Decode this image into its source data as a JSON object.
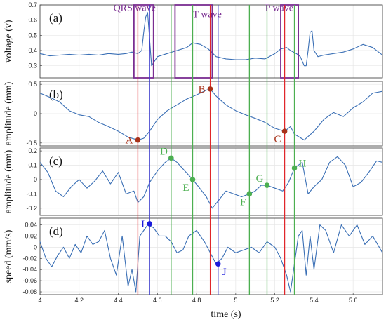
{
  "chart_data": {
    "type": "line",
    "xlabel": "time (s)",
    "xlim": [
      4.0,
      5.75
    ],
    "xticks": [
      4,
      4.2,
      4.4,
      4.6,
      4.8,
      5,
      5.2,
      5.4,
      5.6
    ],
    "xtick_labels": [
      "4",
      "4.2",
      "4.4",
      "4.6",
      "4.8",
      "5",
      "5.2",
      "5.4",
      "5.6"
    ],
    "colors": {
      "trace": "#3a6fb5",
      "red_line": "#e0262a",
      "green_line": "#4caf50",
      "blue_line": "#3a3acc",
      "purple_box": "#7a2d91",
      "brown_point": "#a8321a",
      "green_point": "#4caf50",
      "blue_point": "#1a1adc"
    },
    "vertical_lines": [
      {
        "x": 4.5,
        "color": "red"
      },
      {
        "x": 4.87,
        "color": "red"
      },
      {
        "x": 5.25,
        "color": "red"
      },
      {
        "x": 4.56,
        "color": "blue"
      },
      {
        "x": 4.91,
        "color": "blue"
      },
      {
        "x": 4.67,
        "color": "green"
      },
      {
        "x": 4.78,
        "color": "green"
      },
      {
        "x": 5.07,
        "color": "green"
      },
      {
        "x": 5.16,
        "color": "green"
      },
      {
        "x": 5.3,
        "color": "green"
      }
    ],
    "panels": [
      {
        "id": "a",
        "label": "(a)",
        "ylabel": "voltage (v)",
        "ylim": [
          0.22,
          0.7
        ],
        "yticks": [
          0.3,
          0.4,
          0.5,
          0.6,
          0.7
        ],
        "ytick_labels": [
          "0.3",
          "0.4",
          "0.5",
          "0.6",
          "0.7"
        ],
        "x": [
          4.0,
          4.05,
          4.1,
          4.15,
          4.2,
          4.25,
          4.3,
          4.35,
          4.4,
          4.44,
          4.47,
          4.5,
          4.52,
          4.53,
          4.54,
          4.55,
          4.57,
          4.6,
          4.65,
          4.7,
          4.75,
          4.78,
          4.82,
          4.86,
          4.9,
          4.95,
          5.0,
          5.05,
          5.1,
          5.15,
          5.2,
          5.23,
          5.26,
          5.28,
          5.31,
          5.33,
          5.35,
          5.36,
          5.37,
          5.38,
          5.39,
          5.4,
          5.42,
          5.45,
          5.5,
          5.55,
          5.6,
          5.65,
          5.7,
          5.75
        ],
        "y": [
          0.38,
          0.365,
          0.37,
          0.375,
          0.37,
          0.375,
          0.37,
          0.38,
          0.375,
          0.38,
          0.39,
          0.38,
          0.4,
          0.52,
          0.62,
          0.65,
          0.3,
          0.36,
          0.38,
          0.4,
          0.42,
          0.45,
          0.44,
          0.41,
          0.36,
          0.345,
          0.34,
          0.34,
          0.35,
          0.345,
          0.38,
          0.41,
          0.42,
          0.4,
          0.38,
          0.36,
          0.3,
          0.3,
          0.4,
          0.52,
          0.53,
          0.4,
          0.36,
          0.37,
          0.38,
          0.39,
          0.41,
          0.44,
          0.42,
          0.37
        ],
        "annotations": [
          {
            "text": "QRS wave",
            "x": 4.375,
            "y": 0.66
          },
          {
            "text": "T wave",
            "x": 4.78,
            "y": 0.62
          },
          {
            "text": "P wave",
            "x": 5.15,
            "y": 0.66
          }
        ],
        "boxes": [
          {
            "x0": 4.48,
            "x1": 4.58,
            "y0": 0.22,
            "y1": 0.7
          },
          {
            "x0": 4.69,
            "x1": 4.88,
            "y0": 0.22,
            "y1": 0.7
          },
          {
            "x0": 5.23,
            "x1": 5.32,
            "y0": 0.22,
            "y1": 0.7
          }
        ]
      },
      {
        "id": "b",
        "label": "(b)",
        "ylabel": "amplitude (mm)",
        "ylim": [
          -0.55,
          0.55
        ],
        "yticks": [
          -0.5,
          0,
          0.5
        ],
        "ytick_labels": [
          "-0.5",
          "0",
          "0.5"
        ],
        "x": [
          4.0,
          4.05,
          4.1,
          4.15,
          4.2,
          4.25,
          4.3,
          4.35,
          4.4,
          4.45,
          4.5,
          4.53,
          4.56,
          4.6,
          4.65,
          4.7,
          4.75,
          4.8,
          4.85,
          4.87,
          4.9,
          4.95,
          5.0,
          5.05,
          5.1,
          5.15,
          5.2,
          5.25,
          5.28,
          5.3,
          5.35,
          5.4,
          5.45,
          5.5,
          5.55,
          5.6,
          5.65,
          5.7,
          5.75
        ],
        "y": [
          0.35,
          0.28,
          0.2,
          0.05,
          -0.02,
          -0.05,
          -0.15,
          -0.22,
          -0.3,
          -0.4,
          -0.45,
          -0.42,
          -0.3,
          -0.1,
          0.05,
          0.15,
          0.25,
          0.32,
          0.4,
          0.42,
          0.3,
          0.15,
          0.05,
          -0.02,
          -0.08,
          -0.15,
          -0.25,
          -0.3,
          -0.22,
          -0.35,
          -0.45,
          -0.3,
          -0.1,
          0.02,
          -0.05,
          0.1,
          0.2,
          0.35,
          0.38
        ],
        "points": [
          {
            "label": "A",
            "x": 4.5,
            "y": -0.45,
            "color": "brown",
            "label_side": "left"
          },
          {
            "label": "B",
            "x": 4.87,
            "y": 0.42,
            "color": "brown",
            "label_side": "left"
          },
          {
            "label": "C",
            "x": 5.25,
            "y": -0.3,
            "color": "brown",
            "label_side": "below-left"
          }
        ]
      },
      {
        "id": "c",
        "label": "(c)",
        "ylabel": "amplitude (mm)",
        "ylim": [
          -0.25,
          0.22
        ],
        "yticks": [
          -0.2,
          -0.1,
          0,
          0.1,
          0.2
        ],
        "ytick_labels": [
          "-0.2",
          "-0.1",
          "0",
          "0.1",
          "0.2"
        ],
        "x": [
          4.0,
          4.04,
          4.08,
          4.12,
          4.16,
          4.2,
          4.24,
          4.28,
          4.32,
          4.36,
          4.4,
          4.44,
          4.48,
          4.5,
          4.53,
          4.56,
          4.6,
          4.64,
          4.67,
          4.7,
          4.74,
          4.78,
          4.81,
          4.85,
          4.88,
          4.91,
          4.95,
          4.99,
          5.03,
          5.07,
          5.1,
          5.13,
          5.16,
          5.2,
          5.24,
          5.27,
          5.3,
          5.34,
          5.37,
          5.4,
          5.44,
          5.48,
          5.52,
          5.56,
          5.6,
          5.64,
          5.68,
          5.72,
          5.75
        ],
        "y": [
          0.12,
          0.05,
          -0.08,
          -0.12,
          -0.05,
          0.0,
          -0.06,
          -0.01,
          0.06,
          -0.03,
          0.05,
          -0.1,
          -0.08,
          -0.16,
          -0.12,
          -0.02,
          0.06,
          0.12,
          0.15,
          0.12,
          0.06,
          0.0,
          -0.05,
          -0.12,
          -0.2,
          -0.15,
          -0.08,
          -0.1,
          -0.12,
          -0.1,
          -0.08,
          -0.04,
          -0.04,
          -0.06,
          -0.08,
          -0.02,
          0.08,
          0.12,
          -0.1,
          -0.05,
          0.0,
          0.12,
          0.16,
          0.1,
          -0.05,
          -0.02,
          0.05,
          0.13,
          0.12
        ],
        "points": [
          {
            "label": "D",
            "x": 4.67,
            "y": 0.15,
            "color": "green",
            "label_side": "above-left"
          },
          {
            "label": "E",
            "x": 4.78,
            "y": 0.0,
            "color": "green",
            "label_side": "below-left"
          },
          {
            "label": "F",
            "x": 5.07,
            "y": -0.1,
            "color": "green",
            "label_side": "below-left"
          },
          {
            "label": "G",
            "x": 5.16,
            "y": -0.04,
            "color": "green",
            "label_side": "above-left"
          },
          {
            "label": "H",
            "x": 5.3,
            "y": 0.08,
            "color": "green",
            "label_side": "right"
          }
        ]
      },
      {
        "id": "d",
        "label": "(d)",
        "ylabel": "speed (mm/s)",
        "ylim": [
          -0.085,
          0.052
        ],
        "yticks": [
          -0.08,
          -0.06,
          -0.04,
          -0.02,
          0,
          0.02,
          0.04
        ],
        "ytick_labels": [
          "-0.08",
          "-0.06",
          "-0.04",
          "-0.02",
          "0",
          "0.02",
          "0.04"
        ],
        "x": [
          4.0,
          4.03,
          4.06,
          4.09,
          4.12,
          4.15,
          4.18,
          4.21,
          4.24,
          4.27,
          4.3,
          4.33,
          4.36,
          4.39,
          4.42,
          4.45,
          4.47,
          4.49,
          4.51,
          4.53,
          4.55,
          4.58,
          4.61,
          4.64,
          4.67,
          4.7,
          4.73,
          4.76,
          4.8,
          4.84,
          4.87,
          4.9,
          4.93,
          4.96,
          5.0,
          5.04,
          5.08,
          5.12,
          5.16,
          5.2,
          5.23,
          5.26,
          5.28,
          5.3,
          5.32,
          5.34,
          5.36,
          5.38,
          5.4,
          5.43,
          5.46,
          5.5,
          5.54,
          5.58,
          5.62,
          5.66,
          5.7,
          5.75
        ],
        "y": [
          0.01,
          -0.02,
          -0.035,
          -0.015,
          0.0,
          -0.02,
          0.005,
          -0.01,
          0.02,
          0.005,
          0.01,
          0.03,
          -0.02,
          -0.05,
          0.02,
          -0.07,
          -0.04,
          -0.08,
          0.02,
          0.03,
          0.04,
          0.035,
          0.02,
          0.02,
          0.01,
          -0.01,
          -0.005,
          0.02,
          0.03,
          0.01,
          -0.01,
          -0.03,
          -0.02,
          0.0,
          -0.01,
          -0.005,
          0.0,
          -0.01,
          0.01,
          0.0,
          -0.02,
          -0.05,
          -0.08,
          -0.03,
          0.02,
          0.03,
          -0.05,
          0.02,
          -0.04,
          0.04,
          0.03,
          -0.01,
          0.04,
          0.02,
          0.04,
          0.005,
          0.02,
          -0.01
        ],
        "points": [
          {
            "label": "I",
            "x": 4.56,
            "y": 0.042,
            "color": "blue",
            "label_side": "left"
          },
          {
            "label": "J",
            "x": 4.91,
            "y": -0.03,
            "color": "blue",
            "label_side": "below-right"
          }
        ]
      }
    ]
  }
}
